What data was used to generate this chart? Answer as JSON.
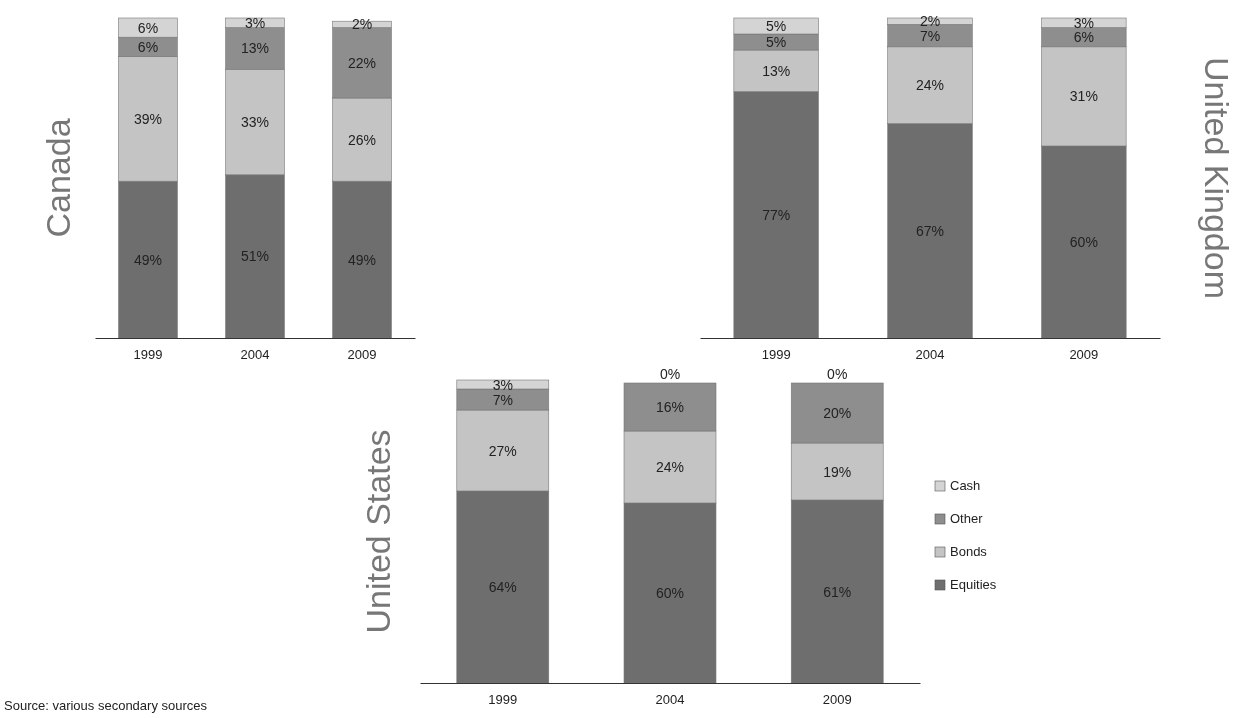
{
  "chart_data": [
    {
      "type": "bar",
      "ylabel": "Canada",
      "categories": [
        "1999",
        "2004",
        "2009"
      ],
      "stacked": true,
      "tick_labels": "x",
      "legend": false,
      "series": [
        {
          "color": "#6e6e6e",
          "values": [
            49,
            51,
            49
          ],
          "value_labels": [
            "49%",
            "51%",
            "49%"
          ]
        },
        {
          "color": "#c4c4c4",
          "values": [
            39,
            33,
            26
          ],
          "value_labels": [
            "39%",
            "33%",
            "26%"
          ]
        },
        {
          "color": "#8e8e8e",
          "values": [
            6,
            13,
            22
          ],
          "value_labels": [
            "6%",
            "13%",
            "22%"
          ]
        },
        {
          "color": "#d4d4d4",
          "values": [
            6,
            3,
            2
          ],
          "value_labels": [
            "6%",
            "3%",
            "2%"
          ]
        }
      ]
    },
    {
      "type": "bar",
      "y2label": "United Kingdom",
      "categories": [
        "1999",
        "2004",
        "2009"
      ],
      "stacked": true,
      "tick_labels": "x",
      "legend": false,
      "series": [
        {
          "color": "#6e6e6e",
          "values": [
            77,
            67,
            60
          ],
          "value_labels": [
            "77%",
            "67%",
            "60%"
          ]
        },
        {
          "color": "#c4c4c4",
          "values": [
            13,
            24,
            31
          ],
          "value_labels": [
            "13%",
            "24%",
            "31%"
          ]
        },
        {
          "color": "#8e8e8e",
          "values": [
            5,
            7,
            6
          ],
          "value_labels": [
            "5%",
            "7%",
            "6%"
          ]
        },
        {
          "color": "#d4d4d4",
          "values": [
            5,
            2,
            3
          ],
          "value_labels": [
            "5%",
            "2%",
            "3%"
          ]
        }
      ]
    },
    {
      "type": "bar",
      "ylabel": "United States",
      "categories": [
        "1999",
        "2004",
        "2009"
      ],
      "stacked": true,
      "tick_labels": "x",
      "legend": "right",
      "annotations": [
        "Source: various secondary sources"
      ],
      "series": [
        {
          "name": "Equities",
          "color": "#6e6e6e",
          "values": [
            64,
            60,
            61
          ],
          "value_labels": [
            "64%",
            "60%",
            "61%"
          ]
        },
        {
          "name": "Bonds",
          "color": "#c4c4c4",
          "values": [
            27,
            24,
            19
          ],
          "value_labels": [
            "27%",
            "24%",
            "19%"
          ]
        },
        {
          "name": "Other",
          "color": "#8e8e8e",
          "values": [
            7,
            16,
            20
          ],
          "value_labels": [
            "7%",
            "16%",
            "20%"
          ]
        },
        {
          "name": "Cash",
          "color": "#d4d4d4",
          "values": [
            3,
            0,
            0
          ],
          "value_labels": [
            "3%",
            "0%",
            "0%"
          ]
        }
      ]
    }
  ]
}
